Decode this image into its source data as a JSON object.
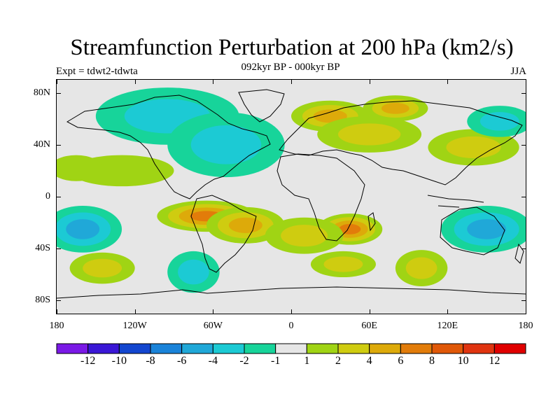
{
  "header": {
    "title": "Streamfunction Perturbation at 200 hPa (km2/s)",
    "subtitle": "092kyr BP - 000kyr BP",
    "left_label": "Expt = tdwt2-tdwta",
    "right_label": "JJA"
  },
  "axes": {
    "y_labels": [
      "80N",
      "40N",
      "0",
      "40S",
      "80S"
    ],
    "y_values": [
      80,
      40,
      0,
      -40,
      -80
    ],
    "x_labels": [
      "180",
      "120W",
      "60W",
      "0",
      "60E",
      "120E",
      "180"
    ],
    "x_values": [
      -180,
      -120,
      -60,
      0,
      60,
      120,
      180
    ],
    "lon_range": [
      -180,
      180
    ],
    "lat_range": [
      -90,
      90
    ]
  },
  "colorbar": {
    "labels": [
      "-12",
      "-10",
      "-8",
      "-6",
      "-4",
      "-2",
      "-1",
      "1",
      "2",
      "4",
      "6",
      "8",
      "10",
      "12"
    ],
    "colors": [
      "#7a19e6",
      "#3a17d6",
      "#1346cf",
      "#1a83d9",
      "#20a8d8",
      "#1ccad4",
      "#17d49a",
      "#e6e6e6",
      "#a0d414",
      "#cfcc10",
      "#ddaa0a",
      "#e27c0a",
      "#e05808",
      "#e03410",
      "#e00000"
    ]
  },
  "chart_data": {
    "type": "heatmap",
    "title": "Streamfunction Perturbation at 200 hPa (km2/s)",
    "subtitle": "092kyr BP - 000kyr BP",
    "xlim": [
      -180,
      180
    ],
    "ylim": [
      -90,
      90
    ],
    "contour_levels": [
      -12,
      -10,
      -8,
      -6,
      -4,
      -2,
      -1,
      1,
      2,
      4,
      6,
      8,
      10,
      12
    ],
    "blobs": [
      {
        "lon": -95,
        "lat": 62,
        "value": -3,
        "rx": 55,
        "ry": 22
      },
      {
        "lon": -50,
        "lat": 40,
        "value": -2.5,
        "rx": 45,
        "ry": 25
      },
      {
        "lon": -130,
        "lat": 20,
        "value": 1.8,
        "rx": 40,
        "ry": 12
      },
      {
        "lon": -165,
        "lat": 22,
        "value": 1.5,
        "rx": 20,
        "ry": 10
      },
      {
        "lon": 30,
        "lat": 62,
        "value": 5,
        "rx": 30,
        "ry": 12
      },
      {
        "lon": 80,
        "lat": 68,
        "value": 5.5,
        "rx": 25,
        "ry": 10
      },
      {
        "lon": 60,
        "lat": 48,
        "value": 2.5,
        "rx": 40,
        "ry": 14
      },
      {
        "lon": 140,
        "lat": 38,
        "value": 2.5,
        "rx": 35,
        "ry": 14
      },
      {
        "lon": 160,
        "lat": 58,
        "value": -2.5,
        "rx": 25,
        "ry": 12
      },
      {
        "lon": -65,
        "lat": -15,
        "value": 7,
        "rx": 38,
        "ry": 12
      },
      {
        "lon": -35,
        "lat": -22,
        "value": 4.5,
        "rx": 30,
        "ry": 14
      },
      {
        "lon": 45,
        "lat": -25,
        "value": 6.5,
        "rx": 25,
        "ry": 12
      },
      {
        "lon": 10,
        "lat": -30,
        "value": 3.5,
        "rx": 30,
        "ry": 14
      },
      {
        "lon": -160,
        "lat": -25,
        "value": -4.5,
        "rx": 30,
        "ry": 18
      },
      {
        "lon": 150,
        "lat": -25,
        "value": -4,
        "rx": 35,
        "ry": 18
      },
      {
        "lon": -145,
        "lat": -55,
        "value": 3.5,
        "rx": 25,
        "ry": 12
      },
      {
        "lon": 40,
        "lat": -52,
        "value": 2.2,
        "rx": 25,
        "ry": 10
      },
      {
        "lon": 100,
        "lat": -55,
        "value": 3,
        "rx": 20,
        "ry": 14
      },
      {
        "lon": -75,
        "lat": -58,
        "value": -3.5,
        "rx": 20,
        "ry": 16
      }
    ]
  }
}
